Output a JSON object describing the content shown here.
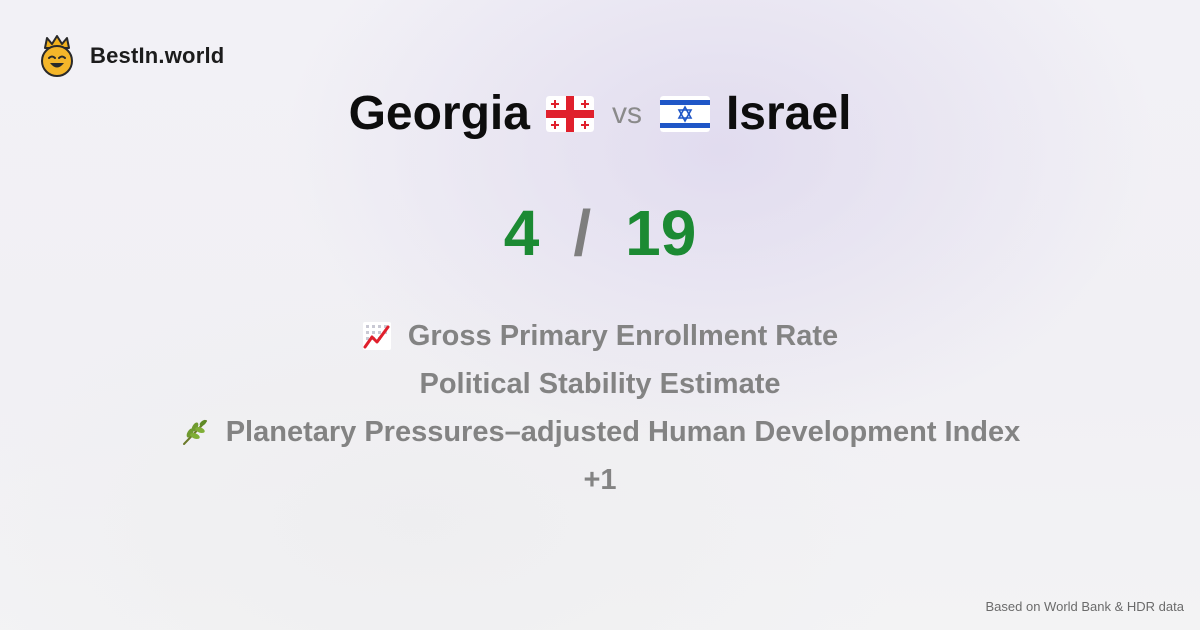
{
  "brand": {
    "name": "BestIn.world",
    "logo_icon": "crown-smiley-icon"
  },
  "comparison": {
    "left_country": "Georgia",
    "left_flag_icon": "georgia-flag-icon",
    "separator": "vs",
    "right_country": "Israel",
    "right_flag_icon": "israel-flag-icon"
  },
  "score": {
    "left": "4",
    "divider": "/",
    "right": "19",
    "color": "#1c8a33"
  },
  "metrics": [
    {
      "icon": "chart-increasing-icon",
      "label": "Gross Primary Enrollment Rate"
    },
    {
      "icon": "",
      "label": "Political Stability Estimate"
    },
    {
      "icon": "herb-icon",
      "label": "Planetary Pressures–adjusted Human Development Index"
    },
    {
      "icon": "",
      "label": "+1"
    }
  ],
  "footer": {
    "source": "Based on World Bank & HDR data"
  }
}
